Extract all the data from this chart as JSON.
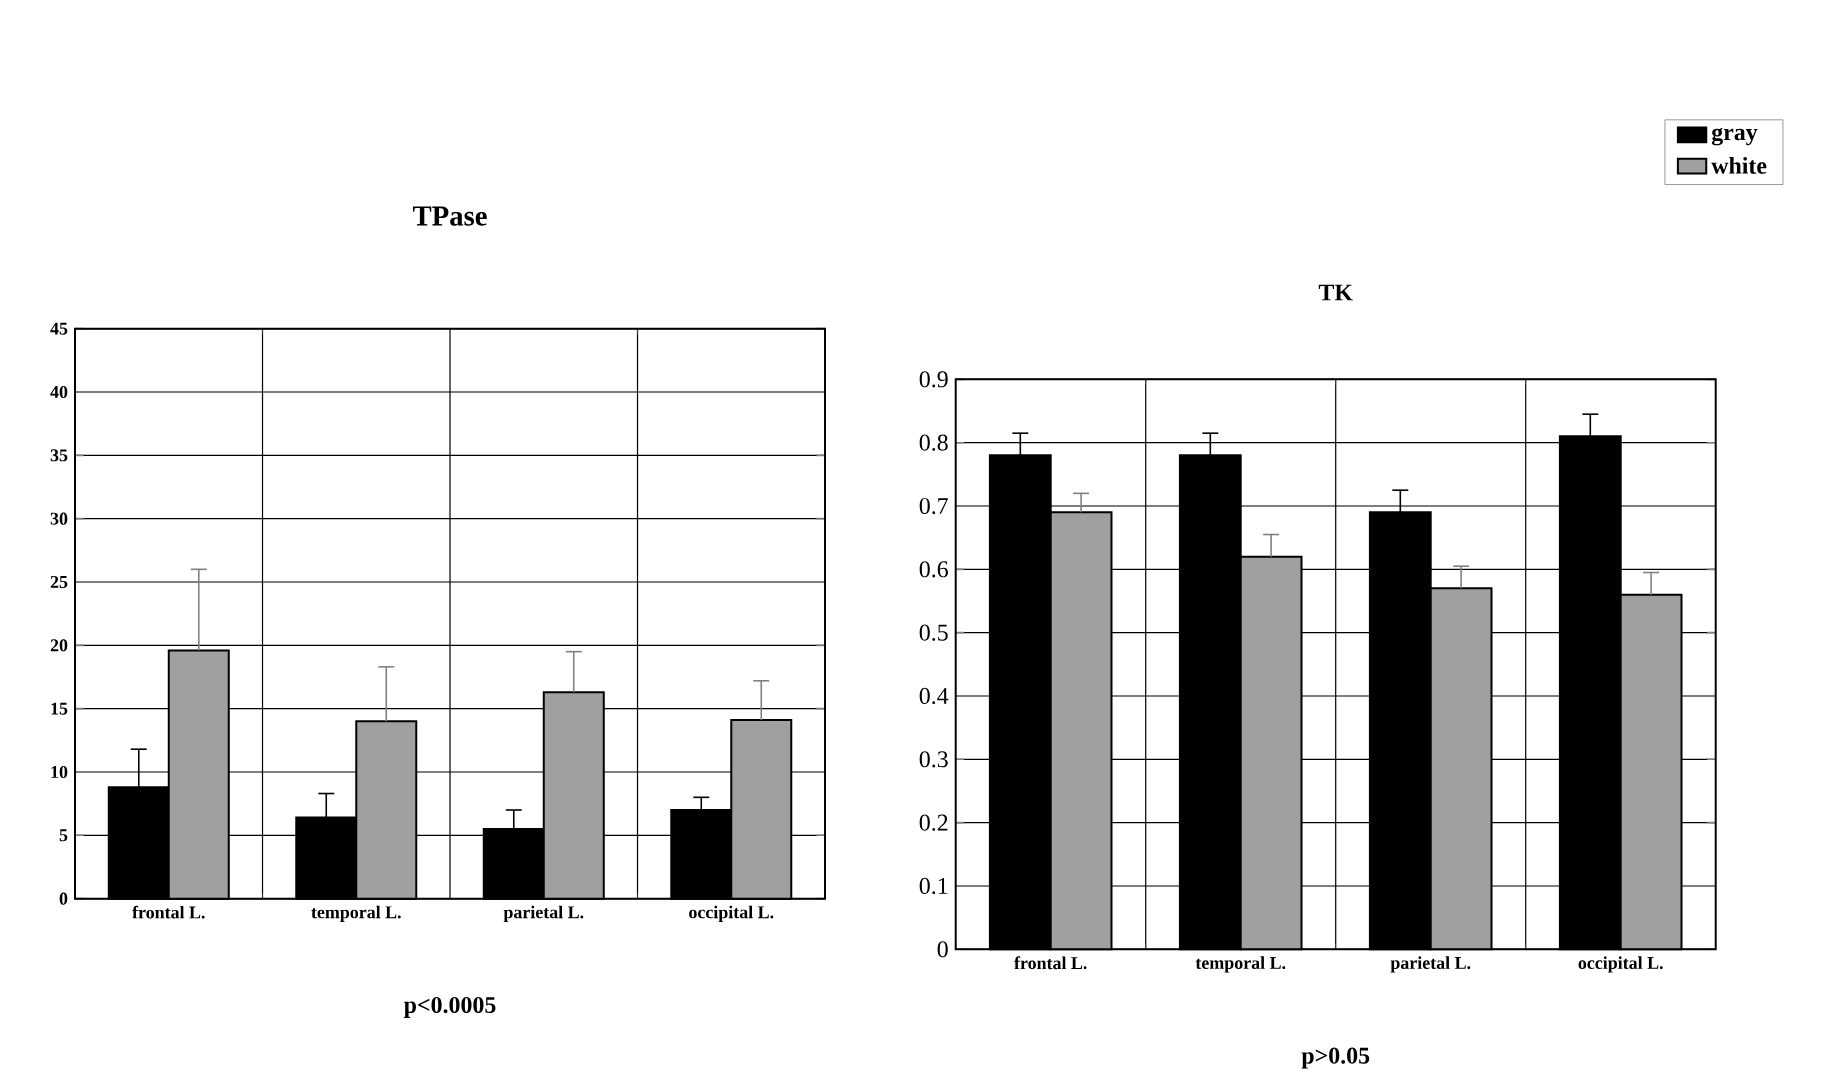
{
  "chart_data": [
    {
      "type": "bar",
      "title": "TPase",
      "categories": [
        "frontal L.",
        "temporal L.",
        "parietal L.",
        "occipital L."
      ],
      "series": [
        {
          "color": "#000000",
          "values": [
            8.8,
            6.4,
            5.5,
            7.0
          ],
          "errors": [
            [
              8.8,
              11.8
            ],
            [
              6.4,
              8.3
            ],
            [
              5.5,
              7.0
            ],
            [
              7.0,
              8.0
            ]
          ]
        },
        {
          "color": "#a0a0a0",
          "values": [
            19.6,
            14.0,
            16.3,
            14.1
          ],
          "errors": [
            [
              19.6,
              26.0
            ],
            [
              14.0,
              18.3
            ],
            [
              16.3,
              19.5
            ],
            [
              14.1,
              17.2
            ]
          ]
        }
      ],
      "ylim": [
        0,
        45
      ],
      "yticks": [
        0,
        5,
        10,
        15,
        20,
        25,
        30,
        35,
        40,
        45
      ],
      "grid": true,
      "legend": false,
      "annotations": [
        "p<0.0005"
      ]
    },
    {
      "type": "bar",
      "title": "TK",
      "categories": [
        "frontal L.",
        "temporal L.",
        "parietal L.",
        "occipital L."
      ],
      "series": [
        {
          "name": "gray",
          "color": "#000000",
          "values": [
            0.78,
            0.78,
            0.69,
            0.81
          ],
          "errors": [
            [
              0.78,
              0.815
            ],
            [
              0.78,
              0.815
            ],
            [
              0.69,
              0.725
            ],
            [
              0.81,
              0.845
            ]
          ]
        },
        {
          "name": "white",
          "color": "#a0a0a0",
          "values": [
            0.69,
            0.62,
            0.57,
            0.56
          ],
          "errors": [
            [
              0.69,
              0.72
            ],
            [
              0.62,
              0.655
            ],
            [
              0.57,
              0.605
            ],
            [
              0.56,
              0.595
            ]
          ]
        }
      ],
      "ylim": [
        0,
        0.9
      ],
      "yticks": [
        0,
        0.1,
        0.2,
        0.3,
        0.4,
        0.5,
        0.6,
        0.7,
        0.8,
        0.9
      ],
      "grid": true,
      "legend": "top right",
      "annotations": [
        "p>0.05"
      ]
    }
  ]
}
